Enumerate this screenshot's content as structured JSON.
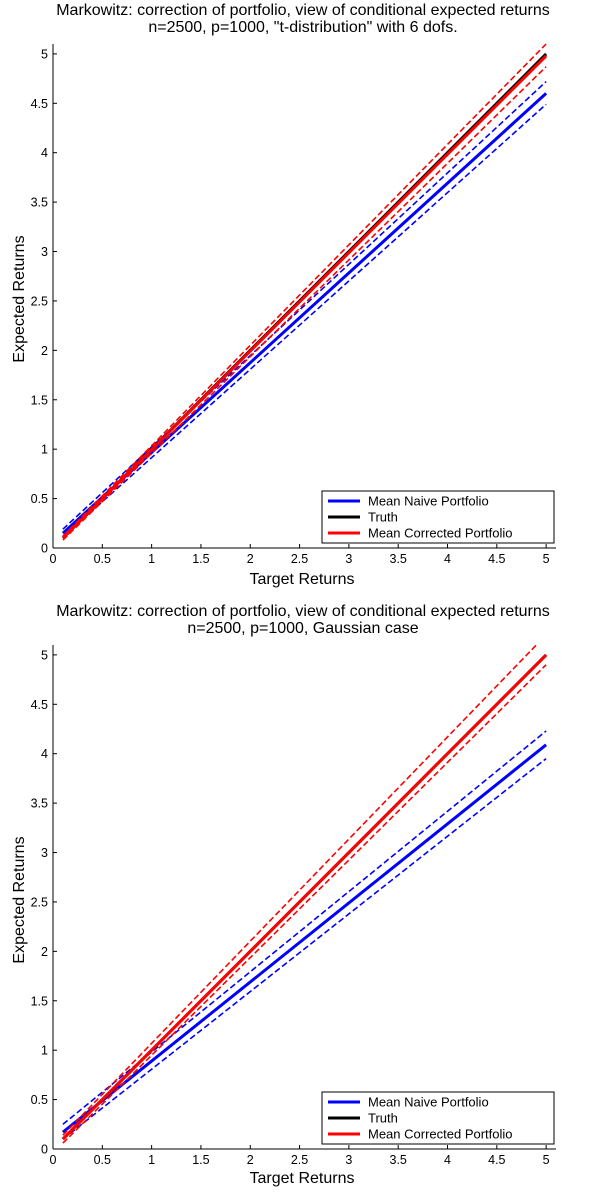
{
  "chart_data": [
    {
      "type": "line",
      "title": "Markowitz: correction of portfolio, view of conditional expected returns",
      "subtitle": "n=2500, p=1000, \"t-distribution\" with 6 dofs.",
      "xlabel": "Target Returns",
      "ylabel": "Expected Returns",
      "xlim": [
        0,
        5.1
      ],
      "ylim": [
        0,
        5.1
      ],
      "xticks": [
        "0",
        "0.5",
        "1",
        "1.5",
        "2",
        "2.5",
        "3",
        "3.5",
        "4",
        "4.5",
        "5"
      ],
      "yticks": [
        "0",
        "0.5",
        "1",
        "1.5",
        "2",
        "2.5",
        "3",
        "3.5",
        "4",
        "4.5",
        "5"
      ],
      "grid": false,
      "legend_position": "lower-right",
      "series": [
        {
          "name": "Mean Naive Portfolio",
          "color": "#0000ff",
          "style": "solid",
          "x": [
            0.1,
            5
          ],
          "y": [
            0.15,
            4.6
          ]
        },
        {
          "color": "#0000ff",
          "style": "dashed",
          "x": [
            0.1,
            5
          ],
          "y": [
            0.19,
            4.72
          ]
        },
        {
          "color": "#0000ff",
          "style": "dashed",
          "x": [
            0.1,
            5
          ],
          "y": [
            0.11,
            4.49
          ]
        },
        {
          "name": "Truth",
          "color": "#000000",
          "style": "solid",
          "x": [
            0.1,
            5
          ],
          "y": [
            0.1,
            5.0
          ]
        },
        {
          "name": "Mean Corrected Portfolio",
          "color": "#ff0000",
          "style": "solid",
          "x": [
            0.1,
            5
          ],
          "y": [
            0.1,
            4.98
          ]
        },
        {
          "color": "#ff0000",
          "style": "dashed",
          "x": [
            0.1,
            5
          ],
          "y": [
            0.12,
            5.1
          ]
        },
        {
          "color": "#ff0000",
          "style": "dashed",
          "x": [
            0.1,
            5
          ],
          "y": [
            0.08,
            4.87
          ]
        }
      ],
      "legend": [
        "Mean Naive Portfolio",
        "Truth",
        "Mean Corrected Portfolio"
      ]
    },
    {
      "type": "line",
      "title": "Markowitz: correction of portfolio, view of conditional expected returns",
      "subtitle": "n=2500, p=1000, Gaussian case",
      "xlabel": "Target Returns",
      "ylabel": "Expected Returns",
      "xlim": [
        0,
        5.1
      ],
      "ylim": [
        0,
        5.1
      ],
      "xticks": [
        "0",
        "0.5",
        "1",
        "1.5",
        "2",
        "2.5",
        "3",
        "3.5",
        "4",
        "4.5",
        "5"
      ],
      "yticks": [
        "0",
        "0.5",
        "1",
        "1.5",
        "2",
        "2.5",
        "3",
        "3.5",
        "4",
        "4.5",
        "5"
      ],
      "grid": false,
      "legend_position": "lower-right",
      "series": [
        {
          "name": "Mean Naive Portfolio",
          "color": "#0000ff",
          "style": "solid",
          "x": [
            0.1,
            5
          ],
          "y": [
            0.17,
            4.09
          ]
        },
        {
          "color": "#0000ff",
          "style": "dashed",
          "x": [
            0.1,
            5
          ],
          "y": [
            0.25,
            4.23
          ]
        },
        {
          "color": "#0000ff",
          "style": "dashed",
          "x": [
            0.1,
            5
          ],
          "y": [
            0.1,
            3.95
          ]
        },
        {
          "name": "Truth",
          "color": "#000000",
          "style": "solid",
          "x": [
            0.1,
            5
          ],
          "y": [
            0.1,
            5.0
          ]
        },
        {
          "name": "Mean Corrected Portfolio",
          "color": "#ff0000",
          "style": "solid",
          "x": [
            0.1,
            5
          ],
          "y": [
            0.1,
            5.0
          ]
        },
        {
          "color": "#ff0000",
          "style": "dashed",
          "x": [
            0.1,
            4.9
          ],
          "y": [
            0.14,
            5.1
          ]
        },
        {
          "color": "#ff0000",
          "style": "dashed",
          "x": [
            0.1,
            5
          ],
          "y": [
            0.06,
            4.9
          ]
        }
      ],
      "legend": [
        "Mean Naive Portfolio",
        "Truth",
        "Mean Corrected Portfolio"
      ]
    }
  ]
}
